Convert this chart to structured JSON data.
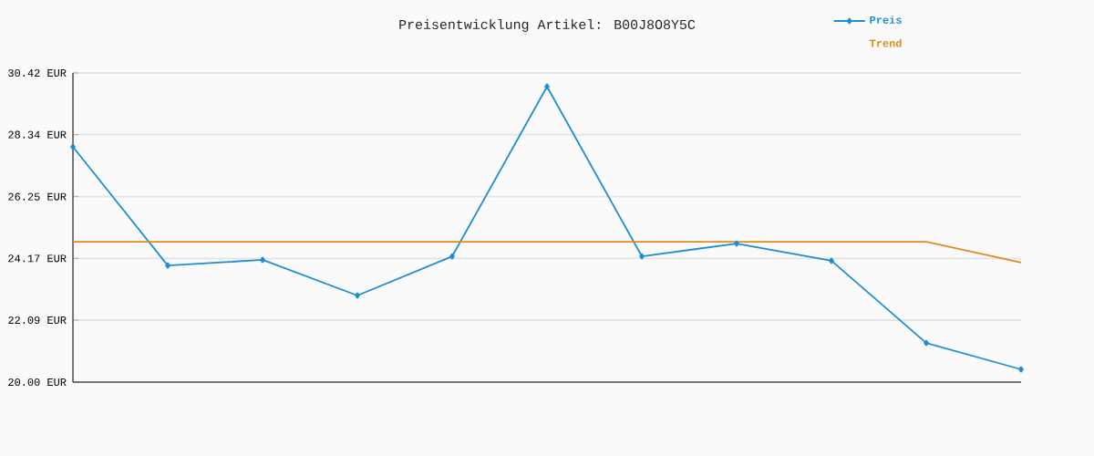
{
  "chart_data": {
    "type": "line",
    "title": "Preisentwicklung Artikel: B00J8O8Y5C",
    "categories": [
      null,
      null,
      null,
      null,
      null,
      null,
      null,
      null,
      null,
      null,
      null
    ],
    "series": [
      {
        "name": "Preis",
        "color": "#1f8dd6",
        "marker": "diamond",
        "values": [
          27.93,
          23.93,
          24.12,
          22.92,
          24.24,
          29.96,
          24.24,
          24.67,
          24.09,
          21.32,
          20.43
        ]
      },
      {
        "name": "Trend",
        "color": "#e08a1e",
        "marker": "none",
        "values": [
          24.73,
          24.73,
          24.73,
          24.73,
          24.73,
          24.73,
          24.73,
          24.73,
          24.73,
          24.73,
          24.03
        ]
      }
    ],
    "ylim": [
      20.0,
      30.42
    ],
    "yticks": [
      {
        "value": 20.0,
        "label": "20.00 EUR"
      },
      {
        "value": 22.09,
        "label": "22.09 EUR"
      },
      {
        "value": 24.17,
        "label": "24.17 EUR"
      },
      {
        "value": 26.25,
        "label": "26.25 EUR"
      },
      {
        "value": 28.34,
        "label": "28.34 EUR"
      },
      {
        "value": 30.42,
        "label": "30.42 EUR"
      }
    ],
    "grid": "y",
    "legend": "top right"
  }
}
